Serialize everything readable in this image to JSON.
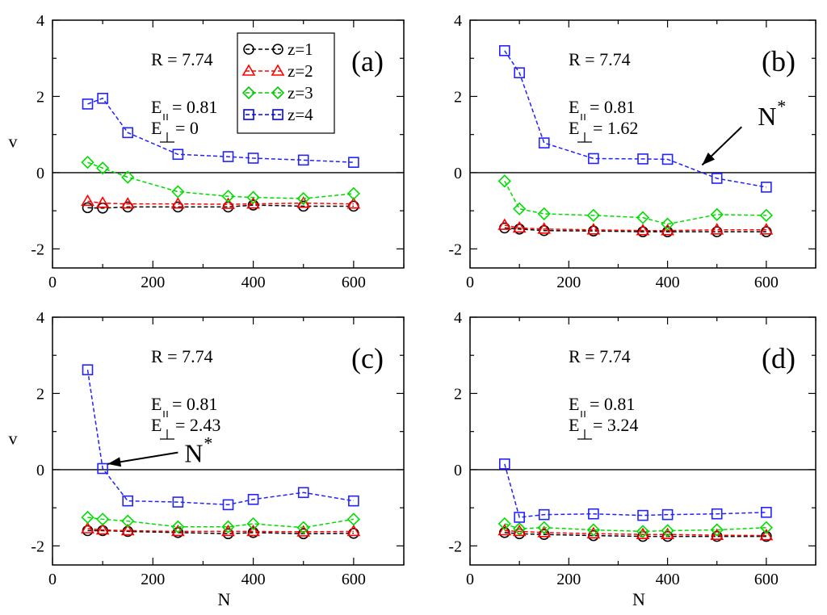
{
  "figure": {
    "x_label": "N",
    "y_label": "v",
    "x_ticks": [
      0,
      200,
      400,
      600
    ],
    "y_ticks": [
      -2,
      0,
      2,
      4
    ],
    "xlim": [
      0,
      700
    ],
    "ylim": [
      -2.5,
      4
    ],
    "legend": [
      {
        "label": "z=1",
        "color": "#000000",
        "marker": "circle"
      },
      {
        "label": "z=2",
        "color": "#ff0000",
        "marker": "triangle"
      },
      {
        "label": "z=3",
        "color": "#00cc00",
        "marker": "diamond"
      },
      {
        "label": "z=4",
        "color": "#0000ff",
        "marker": "square"
      }
    ],
    "legend_position": "top-center of panel (a)",
    "colors": {
      "z1": "#000000",
      "z2": "#ff0000",
      "z3": "#00dd00",
      "z4": "#2222ff"
    }
  },
  "chart_data": [
    {
      "type": "line",
      "panel": "(a)",
      "R_text": "R = 7.74",
      "E_par_text": "= 0.81",
      "E_perp_text": "= 0",
      "x": [
        70,
        100,
        150,
        250,
        350,
        400,
        500,
        600
      ],
      "series": [
        {
          "name": "z=1",
          "values": [
            -0.92,
            -0.93,
            -0.9,
            -0.9,
            -0.9,
            -0.85,
            -0.88,
            -0.88
          ]
        },
        {
          "name": "z=2",
          "values": [
            -0.75,
            -0.8,
            -0.82,
            -0.82,
            -0.83,
            -0.82,
            -0.8,
            -0.82
          ]
        },
        {
          "name": "z=3",
          "values": [
            0.27,
            0.12,
            -0.12,
            -0.5,
            -0.62,
            -0.65,
            -0.68,
            -0.55
          ]
        },
        {
          "name": "z=4",
          "values": [
            1.8,
            1.95,
            1.05,
            0.48,
            0.42,
            0.38,
            0.33,
            0.27
          ]
        }
      ],
      "arrow": null
    },
    {
      "type": "line",
      "panel": "(b)",
      "R_text": "R = 7.74",
      "E_par_text": "= 0.81",
      "E_perp_text": "= 1.62",
      "x": [
        70,
        100,
        150,
        250,
        350,
        400,
        500,
        600
      ],
      "series": [
        {
          "name": "z=1",
          "values": [
            -1.45,
            -1.48,
            -1.52,
            -1.53,
            -1.55,
            -1.55,
            -1.55,
            -1.55
          ]
        },
        {
          "name": "z=2",
          "values": [
            -1.38,
            -1.45,
            -1.48,
            -1.5,
            -1.52,
            -1.52,
            -1.5,
            -1.5
          ]
        },
        {
          "name": "z=3",
          "values": [
            -0.22,
            -0.95,
            -1.08,
            -1.12,
            -1.18,
            -1.35,
            -1.1,
            -1.12
          ]
        },
        {
          "name": "z=4",
          "values": [
            3.2,
            2.62,
            0.78,
            0.37,
            0.36,
            0.35,
            -0.15,
            -0.38
          ]
        }
      ],
      "arrow": {
        "label": "N",
        "sup": "*",
        "target_x": 470,
        "target_y": 0.2,
        "from_x": 550,
        "from_y": 1.2
      }
    },
    {
      "type": "line",
      "panel": "(c)",
      "R_text": "R = 7.74",
      "E_par_text": "= 0.81",
      "E_perp_text": "= 2.43",
      "x": [
        70,
        100,
        150,
        250,
        350,
        400,
        500,
        600
      ],
      "series": [
        {
          "name": "z=1",
          "values": [
            -1.6,
            -1.6,
            -1.62,
            -1.65,
            -1.68,
            -1.65,
            -1.68,
            -1.67
          ]
        },
        {
          "name": "z=2",
          "values": [
            -1.55,
            -1.58,
            -1.6,
            -1.62,
            -1.62,
            -1.62,
            -1.63,
            -1.62
          ]
        },
        {
          "name": "z=3",
          "values": [
            -1.25,
            -1.3,
            -1.35,
            -1.5,
            -1.5,
            -1.42,
            -1.52,
            -1.3
          ]
        },
        {
          "name": "z=4",
          "values": [
            2.62,
            0.03,
            -0.82,
            -0.85,
            -0.92,
            -0.78,
            -0.6,
            -0.82
          ]
        }
      ],
      "arrow": {
        "label": "N",
        "sup": "*",
        "target_x": 110,
        "target_y": 0.15,
        "from_x": 250,
        "from_y": 0.45
      }
    },
    {
      "type": "line",
      "panel": "(d)",
      "R_text": "R = 7.74",
      "E_par_text": "= 0.81",
      "E_perp_text": "= 3.24",
      "x": [
        70,
        100,
        150,
        250,
        350,
        400,
        500,
        600
      ],
      "series": [
        {
          "name": "z=1",
          "values": [
            -1.65,
            -1.68,
            -1.7,
            -1.73,
            -1.75,
            -1.75,
            -1.75,
            -1.75
          ]
        },
        {
          "name": "z=2",
          "values": [
            -1.6,
            -1.62,
            -1.65,
            -1.68,
            -1.7,
            -1.7,
            -1.72,
            -1.73
          ]
        },
        {
          "name": "z=3",
          "values": [
            -1.42,
            -1.55,
            -1.52,
            -1.58,
            -1.62,
            -1.6,
            -1.58,
            -1.52
          ]
        },
        {
          "name": "z=4",
          "values": [
            0.15,
            -1.25,
            -1.18,
            -1.16,
            -1.2,
            -1.18,
            -1.16,
            -1.12
          ]
        }
      ],
      "arrow": null
    }
  ]
}
